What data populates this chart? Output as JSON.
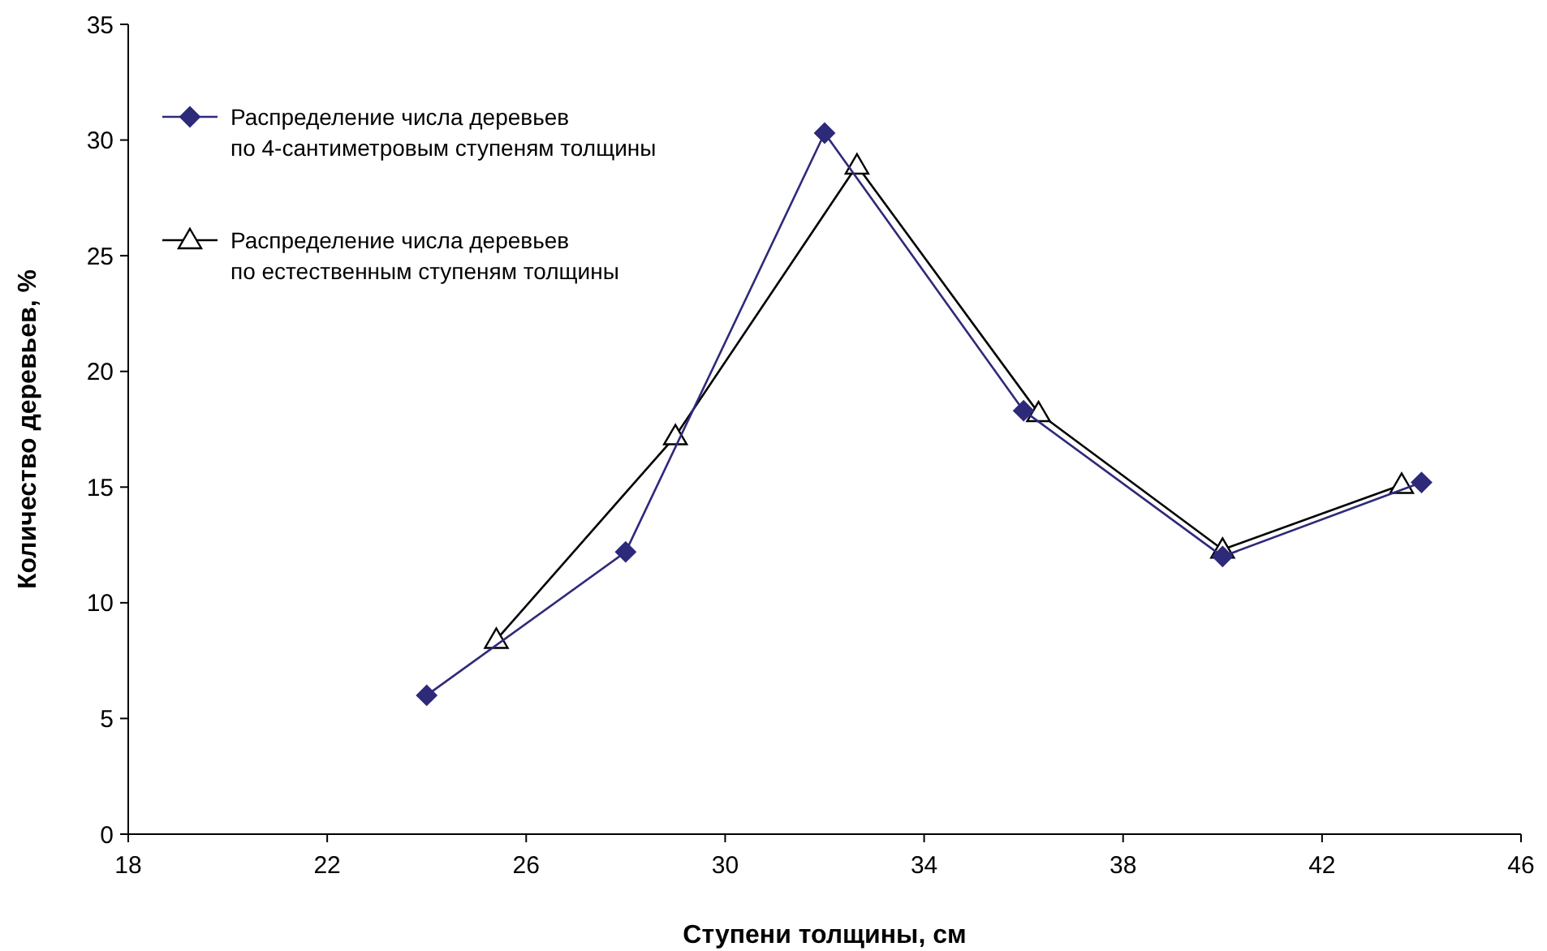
{
  "chart_data": {
    "type": "line",
    "xlabel": "Ступени толщины, см",
    "ylabel": "Количество деревьев, %",
    "xlim": [
      18,
      46
    ],
    "xticks": [
      18,
      22,
      26,
      30,
      34,
      38,
      42,
      46
    ],
    "ylim": [
      0,
      35
    ],
    "yticks": [
      0,
      5,
      10,
      15,
      20,
      25,
      30,
      35
    ],
    "grid": false,
    "legend": "top left",
    "series": [
      {
        "name": "Распределение числа деревьев\nпо 4-сантиметровым ступеням толщины",
        "color": "#2e2a7a",
        "marker": "diamond",
        "x": [
          24,
          28,
          32,
          36,
          40,
          44
        ],
        "values": [
          6.0,
          12.2,
          30.3,
          18.3,
          12.0,
          15.2
        ]
      },
      {
        "name": "Распределение числа деревьев\nпо естественным ступеням толщины",
        "color": "#000000",
        "marker": "triangle",
        "x": [
          25.4,
          29.0,
          32.65,
          36.3,
          40.0,
          43.6
        ],
        "values": [
          8.4,
          17.2,
          28.9,
          18.2,
          12.3,
          15.1
        ]
      }
    ]
  }
}
